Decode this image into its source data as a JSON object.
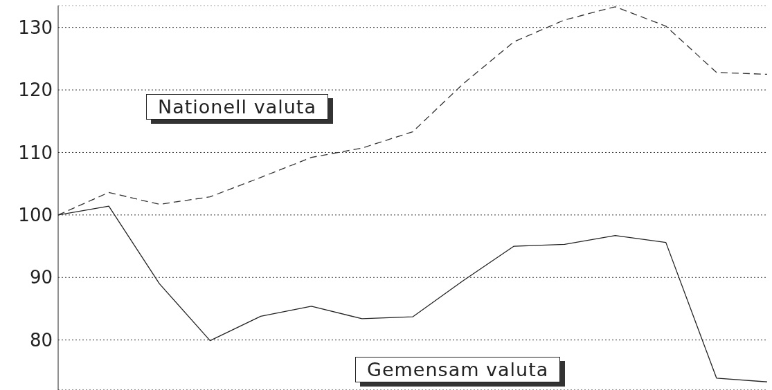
{
  "chart_data": {
    "type": "line",
    "categories": [
      null,
      null,
      null,
      null,
      null,
      null,
      null,
      null,
      null,
      null,
      null,
      null,
      null,
      null,
      null
    ],
    "series": [
      {
        "name": "Nationell valuta",
        "color": "#333333",
        "line_style": "dashed",
        "values": [
          100,
          103.6,
          101.7,
          102.9,
          106,
          109.2,
          110.7,
          113.3,
          121,
          127.7,
          131.2,
          133.3,
          130.2,
          122.8,
          122.5
        ]
      },
      {
        "name": "Gemensam valuta",
        "color": "#222222",
        "line_style": "solid",
        "values": [
          100,
          101.4,
          89,
          79.9,
          83.8,
          85.4,
          83.4,
          83.7,
          89.5,
          95,
          95.3,
          96.7,
          95.6,
          73.9,
          73.3
        ]
      }
    ],
    "ylim": [
      72,
      133.5
    ],
    "yticks": [
      80,
      90,
      100,
      110,
      120,
      130
    ],
    "grid": "y",
    "legend": false,
    "marker": "none"
  }
}
